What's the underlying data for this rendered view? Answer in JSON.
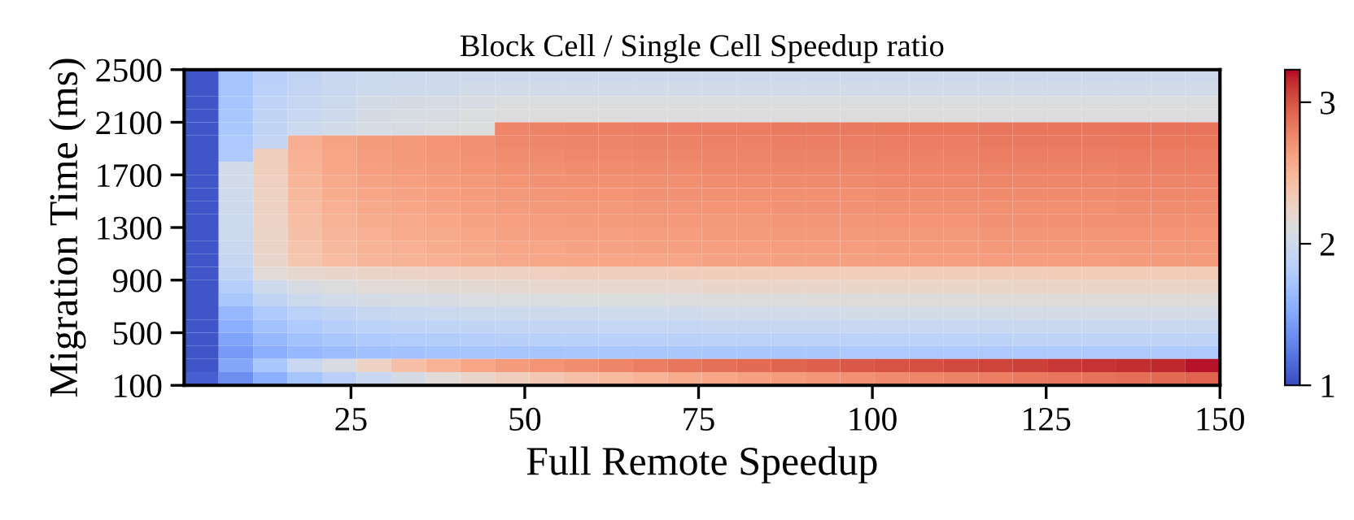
{
  "chart_data": {
    "type": "heatmap",
    "title": "Block Cell / Single Cell Speedup ratio",
    "xlabel": "Full Remote Speedup",
    "ylabel": "Migration Time (ms)",
    "xlim": [
      1,
      150
    ],
    "xticks": [
      25,
      50,
      75,
      100,
      125,
      150
    ],
    "ylim": [
      100,
      2500
    ],
    "yticks": [
      100,
      500,
      900,
      1300,
      1700,
      2100,
      2500
    ],
    "clim": [
      1,
      3.23
    ],
    "cticks": [
      1,
      2,
      3
    ],
    "cells": [
      [
        1.05,
        1.72,
        1.85,
        1.9,
        1.95,
        1.97,
        1.98,
        2.0,
        2.0,
        2.0,
        2.0,
        2.0,
        2.0,
        2.0,
        2.0,
        2.0,
        2.0,
        2.0,
        2.0,
        2.0,
        2.0,
        2.0,
        2.0,
        2.0,
        2.0,
        2.0,
        2.0,
        2.0,
        2.0,
        2.0
      ],
      [
        1.05,
        1.72,
        1.86,
        1.92,
        1.96,
        1.98,
        2.0,
        2.0,
        2.02,
        2.02,
        2.02,
        2.02,
        2.02,
        2.02,
        2.02,
        2.02,
        2.02,
        2.02,
        2.02,
        2.02,
        2.02,
        2.02,
        2.02,
        2.02,
        2.02,
        2.02,
        2.02,
        2.02,
        2.02,
        2.02
      ],
      [
        1.05,
        1.73,
        1.88,
        1.94,
        1.98,
        2.03,
        2.05,
        2.06,
        2.08,
        2.1,
        2.1,
        2.1,
        2.1,
        2.1,
        2.1,
        2.1,
        2.1,
        2.1,
        2.1,
        2.1,
        2.1,
        2.1,
        2.1,
        2.1,
        2.1,
        2.1,
        2.1,
        2.1,
        2.1,
        2.1
      ],
      [
        1.05,
        1.74,
        1.9,
        1.95,
        2.0,
        2.05,
        2.07,
        2.08,
        2.1,
        2.12,
        2.12,
        2.12,
        2.12,
        2.12,
        2.12,
        2.12,
        2.12,
        2.12,
        2.12,
        2.12,
        2.12,
        2.12,
        2.12,
        2.12,
        2.12,
        2.12,
        2.12,
        2.12,
        2.12,
        2.12
      ],
      [
        1.05,
        1.75,
        1.9,
        1.97,
        2.02,
        2.06,
        2.08,
        2.1,
        2.11,
        2.78,
        2.79,
        2.8,
        2.8,
        2.81,
        2.81,
        2.82,
        2.82,
        2.83,
        2.83,
        2.83,
        2.84,
        2.84,
        2.84,
        2.85,
        2.85,
        2.85,
        2.85,
        2.86,
        2.86,
        2.86
      ],
      [
        1.05,
        1.76,
        1.92,
        2.55,
        2.62,
        2.66,
        2.68,
        2.7,
        2.72,
        2.76,
        2.77,
        2.78,
        2.78,
        2.79,
        2.79,
        2.8,
        2.8,
        2.81,
        2.81,
        2.81,
        2.82,
        2.82,
        2.82,
        2.83,
        2.83,
        2.83,
        2.83,
        2.84,
        2.84,
        2.84
      ],
      [
        1.05,
        1.78,
        2.3,
        2.54,
        2.61,
        2.65,
        2.67,
        2.69,
        2.71,
        2.74,
        2.75,
        2.76,
        2.76,
        2.77,
        2.77,
        2.78,
        2.78,
        2.79,
        2.79,
        2.79,
        2.8,
        2.8,
        2.8,
        2.81,
        2.81,
        2.81,
        2.81,
        2.82,
        2.82,
        2.82
      ],
      [
        1.05,
        2.02,
        2.3,
        2.52,
        2.6,
        2.64,
        2.66,
        2.68,
        2.7,
        2.72,
        2.73,
        2.74,
        2.74,
        2.75,
        2.75,
        2.76,
        2.76,
        2.77,
        2.77,
        2.77,
        2.78,
        2.78,
        2.78,
        2.79,
        2.79,
        2.79,
        2.79,
        2.8,
        2.8,
        2.8
      ],
      [
        1.05,
        2.02,
        2.29,
        2.5,
        2.58,
        2.62,
        2.64,
        2.66,
        2.68,
        2.7,
        2.71,
        2.72,
        2.72,
        2.73,
        2.73,
        2.74,
        2.74,
        2.75,
        2.75,
        2.75,
        2.76,
        2.76,
        2.76,
        2.77,
        2.77,
        2.77,
        2.77,
        2.78,
        2.78,
        2.78
      ],
      [
        1.05,
        2.01,
        2.28,
        2.48,
        2.56,
        2.6,
        2.62,
        2.64,
        2.66,
        2.68,
        2.69,
        2.7,
        2.7,
        2.71,
        2.71,
        2.72,
        2.72,
        2.73,
        2.73,
        2.73,
        2.74,
        2.74,
        2.74,
        2.75,
        2.75,
        2.75,
        2.75,
        2.76,
        2.76,
        2.76
      ],
      [
        1.05,
        2.0,
        2.27,
        2.46,
        2.54,
        2.58,
        2.6,
        2.62,
        2.64,
        2.66,
        2.67,
        2.68,
        2.68,
        2.69,
        2.69,
        2.7,
        2.7,
        2.71,
        2.71,
        2.71,
        2.72,
        2.72,
        2.72,
        2.73,
        2.73,
        2.73,
        2.73,
        2.74,
        2.74,
        2.74
      ],
      [
        1.05,
        1.99,
        2.26,
        2.44,
        2.52,
        2.56,
        2.58,
        2.6,
        2.62,
        2.64,
        2.65,
        2.66,
        2.66,
        2.67,
        2.67,
        2.68,
        2.68,
        2.69,
        2.69,
        2.69,
        2.7,
        2.7,
        2.7,
        2.71,
        2.71,
        2.71,
        2.71,
        2.72,
        2.72,
        2.72
      ],
      [
        1.05,
        1.98,
        2.25,
        2.42,
        2.5,
        2.54,
        2.56,
        2.58,
        2.6,
        2.62,
        2.63,
        2.64,
        2.64,
        2.65,
        2.65,
        2.66,
        2.66,
        2.67,
        2.67,
        2.67,
        2.68,
        2.68,
        2.68,
        2.69,
        2.69,
        2.69,
        2.69,
        2.7,
        2.7,
        2.7
      ],
      [
        1.05,
        1.96,
        2.24,
        2.4,
        2.48,
        2.52,
        2.54,
        2.56,
        2.58,
        2.6,
        2.61,
        2.62,
        2.62,
        2.63,
        2.63,
        2.64,
        2.64,
        2.65,
        2.65,
        2.65,
        2.66,
        2.66,
        2.66,
        2.67,
        2.67,
        2.67,
        2.67,
        2.68,
        2.68,
        2.68
      ],
      [
        1.05,
        1.94,
        2.22,
        2.38,
        2.46,
        2.5,
        2.52,
        2.54,
        2.56,
        2.58,
        2.59,
        2.6,
        2.6,
        2.61,
        2.61,
        2.62,
        2.62,
        2.63,
        2.63,
        2.63,
        2.64,
        2.64,
        2.64,
        2.65,
        2.65,
        2.65,
        2.65,
        2.66,
        2.66,
        2.66
      ],
      [
        1.05,
        1.9,
        2.15,
        2.2,
        2.22,
        2.24,
        2.25,
        2.26,
        2.27,
        2.28,
        2.29,
        2.3,
        2.3,
        2.3,
        2.31,
        2.31,
        2.31,
        2.32,
        2.32,
        2.32,
        2.32,
        2.33,
        2.33,
        2.33,
        2.33,
        2.34,
        2.34,
        2.34,
        2.34,
        2.34
      ],
      [
        1.05,
        1.82,
        2.0,
        2.08,
        2.12,
        2.15,
        2.16,
        2.17,
        2.18,
        2.19,
        2.2,
        2.2,
        2.21,
        2.21,
        2.21,
        2.22,
        2.22,
        2.22,
        2.22,
        2.23,
        2.23,
        2.23,
        2.23,
        2.23,
        2.24,
        2.24,
        2.24,
        2.24,
        2.24,
        2.24
      ],
      [
        1.05,
        1.75,
        1.9,
        1.98,
        2.02,
        2.05,
        2.07,
        2.08,
        2.09,
        2.1,
        2.1,
        2.11,
        2.11,
        2.11,
        2.12,
        2.12,
        2.12,
        2.12,
        2.13,
        2.13,
        2.13,
        2.13,
        2.13,
        2.14,
        2.14,
        2.14,
        2.14,
        2.14,
        2.14,
        2.14
      ],
      [
        1.05,
        1.62,
        1.78,
        1.86,
        1.9,
        1.94,
        1.96,
        1.97,
        1.98,
        1.99,
        2.0,
        2.0,
        2.01,
        2.01,
        2.01,
        2.02,
        2.02,
        2.02,
        2.02,
        2.03,
        2.03,
        2.03,
        2.03,
        2.03,
        2.04,
        2.04,
        2.04,
        2.04,
        2.04,
        2.04
      ],
      [
        1.05,
        1.55,
        1.7,
        1.78,
        1.83,
        1.86,
        1.88,
        1.89,
        1.9,
        1.91,
        1.92,
        1.92,
        1.93,
        1.93,
        1.93,
        1.94,
        1.94,
        1.94,
        1.94,
        1.95,
        1.95,
        1.95,
        1.95,
        1.95,
        1.96,
        1.96,
        1.96,
        1.96,
        1.96,
        1.96
      ],
      [
        1.05,
        1.48,
        1.62,
        1.7,
        1.75,
        1.78,
        1.8,
        1.81,
        1.82,
        1.83,
        1.84,
        1.84,
        1.85,
        1.85,
        1.85,
        1.86,
        1.86,
        1.86,
        1.86,
        1.87,
        1.87,
        1.87,
        1.87,
        1.87,
        1.88,
        1.88,
        1.88,
        1.88,
        1.88,
        1.88
      ],
      [
        1.05,
        1.42,
        1.55,
        1.62,
        1.66,
        1.68,
        1.7,
        1.71,
        1.72,
        1.73,
        1.73,
        1.74,
        1.74,
        1.74,
        1.75,
        1.75,
        1.75,
        1.75,
        1.75,
        1.76,
        1.76,
        1.76,
        1.76,
        1.76,
        1.76,
        1.77,
        1.77,
        1.77,
        1.77,
        1.77
      ],
      [
        1.05,
        1.5,
        1.75,
        1.95,
        2.08,
        2.28,
        2.42,
        2.52,
        2.6,
        2.66,
        2.7,
        2.74,
        2.78,
        2.82,
        2.85,
        2.88,
        2.9,
        2.93,
        2.95,
        2.98,
        3.0,
        3.02,
        3.04,
        3.06,
        3.08,
        3.1,
        3.12,
        3.14,
        3.16,
        3.2
      ],
      [
        1.1,
        1.35,
        1.55,
        1.72,
        1.85,
        1.95,
        2.05,
        2.15,
        2.22,
        2.3,
        2.36,
        2.42,
        2.47,
        2.52,
        2.56,
        2.6,
        2.63,
        2.66,
        2.69,
        2.72,
        2.75,
        2.77,
        2.79,
        2.81,
        2.83,
        2.85,
        2.87,
        2.89,
        2.91,
        2.94
      ]
    ]
  }
}
